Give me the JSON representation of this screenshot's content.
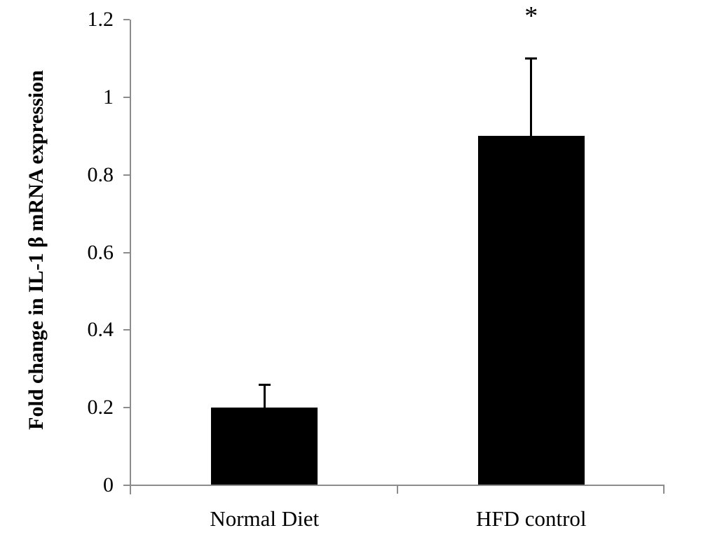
{
  "chart_data": {
    "type": "bar",
    "categories": [
      "Normal Diet",
      "HFD control"
    ],
    "values": [
      0.2,
      0.9
    ],
    "errors_plus": [
      0.06,
      0.2
    ],
    "significance": [
      "",
      "*"
    ],
    "title": "",
    "xlabel": "",
    "ylabel": "Fold change in IL-1 β mRNA expression",
    "yticks": [
      0,
      0.2,
      0.4,
      0.6,
      0.8,
      1,
      1.2
    ],
    "ytick_labels": [
      "0",
      "0.2",
      "0.4",
      "0.6",
      "0.8",
      "1",
      "1.2"
    ],
    "ylim": [
      0,
      1.2
    ],
    "grid": false,
    "legend": false,
    "colors": {
      "bar_fill": "#000000",
      "error_bar": "#000000",
      "axis": "#8c8c8c",
      "text": "#000000",
      "background": "#ffffff"
    }
  }
}
